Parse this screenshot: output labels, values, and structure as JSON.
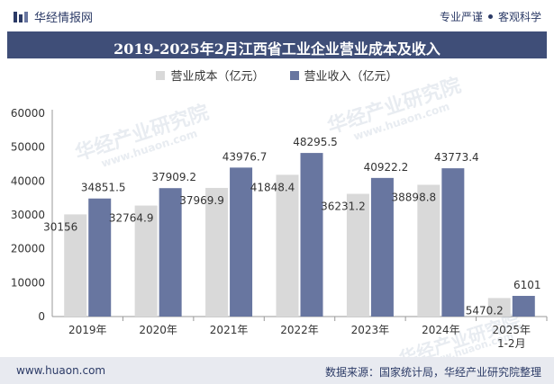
{
  "header": {
    "brand": "华经情报网",
    "tagline_left": "专业严谨",
    "tagline_right": "客观科学"
  },
  "watermarks": [
    "华经产业研究院",
    "www.huaon.com"
  ],
  "chart_data": {
    "type": "bar",
    "title": "2019-2025年2月江西省工业企业营业成本及收入",
    "categories": [
      "2019年",
      "2020年",
      "2021年",
      "2022年",
      "2023年",
      "2024年",
      "2025年\n1-2月"
    ],
    "series": [
      {
        "name": "营业成本（亿元）",
        "color": "#d9d9d9",
        "values": [
          30156,
          32764.9,
          37969.9,
          41848.4,
          36231.2,
          38898.8,
          5470.2
        ],
        "labels": [
          "30156",
          "32764.9",
          "37969.9",
          "41848.4",
          "36231.2",
          "38898.8",
          "5470.2"
        ]
      },
      {
        "name": "营业收入（亿元）",
        "color": "#6876a0",
        "values": [
          34851.5,
          37909.2,
          43976.7,
          48295.5,
          40922.2,
          43773.4,
          6101
        ],
        "labels": [
          "34851.5",
          "37909.2",
          "43976.7",
          "48295.5",
          "40922.2",
          "43773.4",
          "6101"
        ]
      }
    ],
    "ylim": [
      0,
      60000
    ],
    "yticks": [
      0,
      10000,
      20000,
      30000,
      40000,
      50000,
      60000
    ],
    "xlabel": "",
    "ylabel": ""
  },
  "footer": {
    "url": "www.huaon.com",
    "source": "数据来源：国家统计局，华经产业研究院整理"
  }
}
